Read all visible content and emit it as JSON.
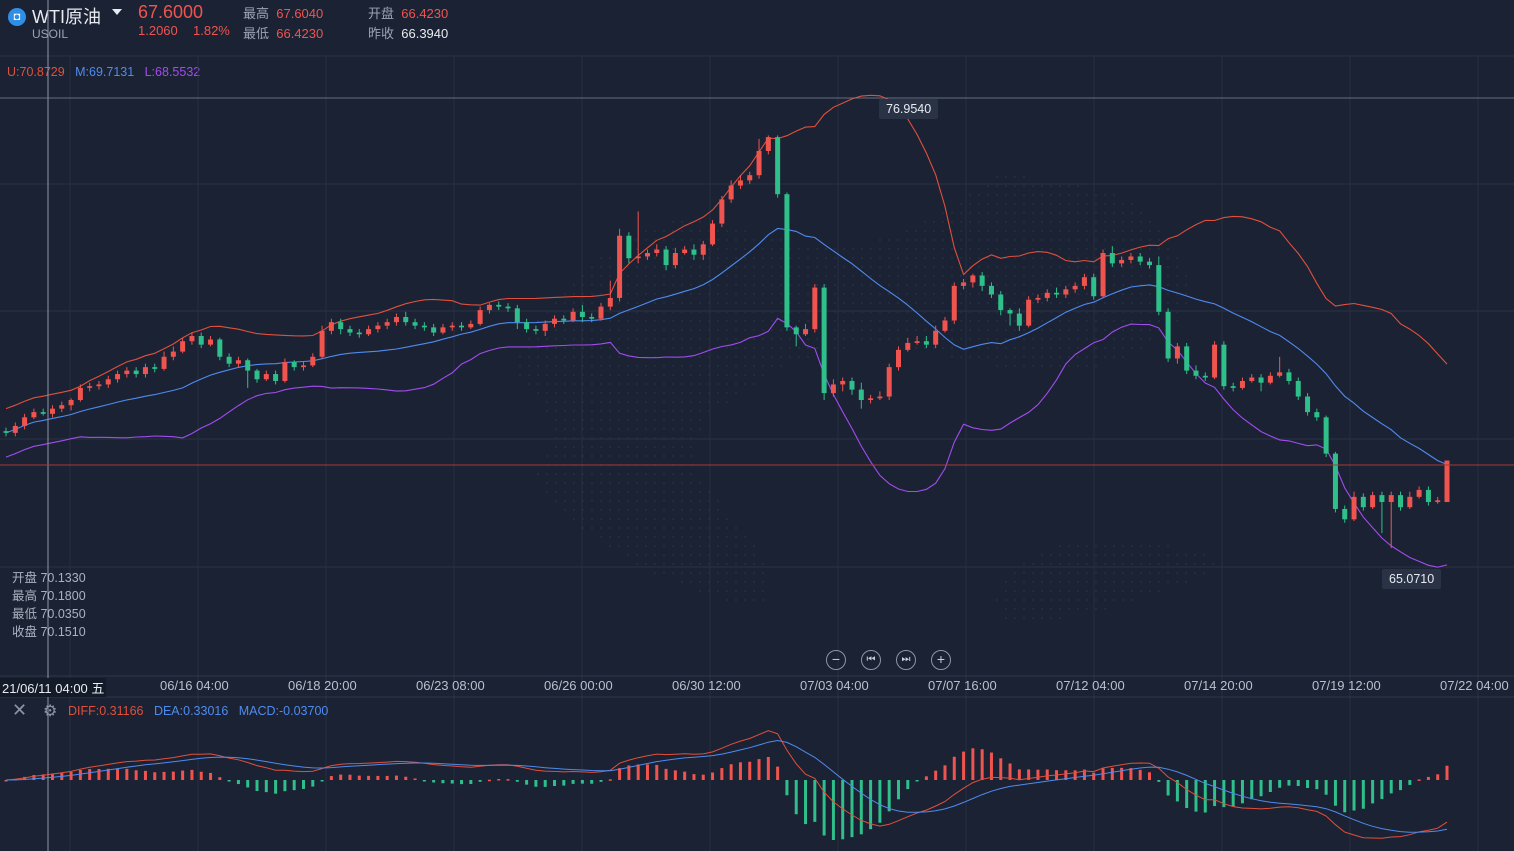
{
  "header": {
    "logo_glyph": "◘",
    "name": "WTI原油",
    "code": "USOIL",
    "price": "67.6000",
    "change": "1.2060",
    "change_pct": "1.82%",
    "high_label": "最高",
    "high": "67.6040",
    "open_label": "开盘",
    "open": "66.4230",
    "low_label": "最低",
    "low": "66.4230",
    "prev_close_label": "昨收",
    "prev_close": "66.3940"
  },
  "bollinger": {
    "upper": "U:70.8729",
    "middle": "M:69.7131",
    "lower": "L:68.5532",
    "colors": {
      "upper": "#e0503d",
      "middle": "#4f8bef",
      "lower": "#a24cf0"
    }
  },
  "crosshair_ohlc": {
    "open": "开盘 70.1330",
    "high": "最高 70.1800",
    "low": "最低 70.0350",
    "close": "收盘 70.1510"
  },
  "price_tags": {
    "max": "76.9540",
    "min": "65.0710"
  },
  "x_axis": {
    "first": "21/06/11 04:00 五",
    "labels": [
      "06/16 04:00",
      "06/18 20:00",
      "06/23 08:00",
      "06/26 00:00",
      "06/30 12:00",
      "07/03 04:00",
      "07/07 16:00",
      "07/12 04:00",
      "07/14 20:00",
      "07/19 12:00",
      "07/22 04:00"
    ]
  },
  "controls": {
    "zoom_out": "−",
    "prev": "⏮",
    "next": "⏭",
    "zoom_in": "+"
  },
  "macd": {
    "close_icon": "close-icon",
    "settings_icon": "gear-icon",
    "diff": "DIFF:0.31166",
    "dea": "DEA:0.33016",
    "macd": "MACD:-0.03700",
    "colors": {
      "diff": "#e0503d",
      "dea": "#4f8bef",
      "macd_pos": "#f0544f",
      "macd_neg": "#2fbf8a"
    }
  },
  "chart_data": {
    "type": "candlestick",
    "title": "WTI原油",
    "y_range": [
      64.5,
      79.0
    ],
    "grid": true,
    "candles": [
      [
        68.45,
        68.4,
        68.3,
        68.55
      ],
      [
        68.4,
        68.6,
        68.3,
        68.7
      ],
      [
        68.6,
        68.85,
        68.5,
        68.95
      ],
      [
        68.85,
        69.0,
        68.8,
        69.1
      ],
      [
        69.0,
        68.95,
        68.9,
        69.1
      ],
      [
        68.95,
        69.1,
        68.85,
        69.2
      ],
      [
        69.1,
        69.2,
        69.0,
        69.3
      ],
      [
        69.2,
        69.35,
        69.05,
        69.4
      ],
      [
        69.35,
        69.7,
        69.3,
        69.8
      ],
      [
        69.7,
        69.75,
        69.6,
        69.85
      ],
      [
        69.75,
        69.8,
        69.65,
        69.9
      ],
      [
        69.8,
        69.95,
        69.7,
        70.05
      ],
      [
        69.95,
        70.1,
        69.85,
        70.2
      ],
      [
        70.1,
        70.2,
        70.0,
        70.3
      ],
      [
        70.2,
        70.1,
        70.0,
        70.3
      ],
      [
        70.1,
        70.3,
        70.0,
        70.4
      ],
      [
        70.3,
        70.25,
        70.15,
        70.4
      ],
      [
        70.25,
        70.6,
        70.2,
        70.75
      ],
      [
        70.6,
        70.75,
        70.5,
        70.9
      ],
      [
        70.75,
        71.05,
        70.7,
        71.15
      ],
      [
        71.05,
        71.2,
        70.95,
        71.3
      ],
      [
        71.2,
        70.95,
        70.85,
        71.3
      ],
      [
        70.95,
        71.1,
        70.9,
        71.2
      ],
      [
        71.1,
        70.6,
        70.5,
        71.15
      ],
      [
        70.6,
        70.4,
        70.3,
        70.7
      ],
      [
        70.4,
        70.5,
        70.3,
        70.6
      ],
      [
        70.5,
        70.2,
        69.7,
        70.55
      ],
      [
        70.2,
        69.95,
        69.85,
        70.25
      ],
      [
        69.95,
        70.1,
        69.9,
        70.2
      ],
      [
        70.1,
        69.9,
        69.8,
        70.2
      ],
      [
        69.9,
        70.45,
        69.85,
        70.55
      ],
      [
        70.45,
        70.3,
        70.2,
        70.5
      ],
      [
        70.3,
        70.35,
        70.2,
        70.45
      ],
      [
        70.35,
        70.6,
        70.3,
        70.7
      ],
      [
        70.6,
        71.35,
        70.55,
        71.5
      ],
      [
        71.35,
        71.6,
        71.25,
        71.7
      ],
      [
        71.6,
        71.4,
        71.25,
        71.7
      ],
      [
        71.4,
        71.3,
        71.2,
        71.5
      ],
      [
        71.3,
        71.25,
        71.15,
        71.4
      ],
      [
        71.25,
        71.4,
        71.2,
        71.5
      ],
      [
        71.4,
        71.5,
        71.3,
        71.6
      ],
      [
        71.5,
        71.6,
        71.4,
        71.7
      ],
      [
        71.6,
        71.75,
        71.5,
        71.85
      ],
      [
        71.75,
        71.6,
        71.5,
        71.9
      ],
      [
        71.6,
        71.5,
        71.4,
        71.7
      ],
      [
        71.5,
        71.45,
        71.35,
        71.6
      ],
      [
        71.45,
        71.3,
        71.2,
        71.55
      ],
      [
        71.3,
        71.45,
        71.25,
        71.55
      ],
      [
        71.45,
        71.5,
        71.35,
        71.6
      ],
      [
        71.5,
        71.45,
        71.35,
        71.6
      ],
      [
        71.45,
        71.55,
        71.4,
        71.65
      ],
      [
        71.55,
        71.95,
        71.5,
        72.05
      ],
      [
        71.95,
        72.1,
        71.85,
        72.15
      ],
      [
        72.1,
        72.05,
        71.95,
        72.2
      ],
      [
        72.05,
        72.0,
        71.9,
        72.15
      ],
      [
        72.0,
        71.6,
        71.4,
        72.1
      ],
      [
        71.6,
        71.4,
        71.3,
        71.7
      ],
      [
        71.4,
        71.35,
        71.25,
        71.5
      ],
      [
        71.35,
        71.55,
        71.2,
        71.65
      ],
      [
        71.55,
        71.7,
        71.45,
        71.8
      ],
      [
        71.7,
        71.65,
        71.55,
        71.8
      ],
      [
        71.65,
        71.9,
        71.6,
        72.0
      ],
      [
        71.9,
        71.75,
        71.6,
        72.1
      ],
      [
        71.75,
        71.7,
        71.6,
        71.85
      ],
      [
        71.7,
        72.05,
        71.65,
        72.15
      ],
      [
        72.05,
        72.3,
        71.95,
        72.8
      ],
      [
        72.3,
        74.1,
        72.2,
        74.3
      ],
      [
        74.1,
        73.45,
        73.3,
        74.2
      ],
      [
        73.45,
        73.5,
        73.3,
        74.8
      ],
      [
        73.5,
        73.6,
        73.4,
        73.7
      ],
      [
        73.6,
        73.7,
        73.5,
        73.85
      ],
      [
        73.7,
        73.25,
        73.1,
        73.8
      ],
      [
        73.25,
        73.6,
        73.15,
        73.75
      ],
      [
        73.6,
        73.7,
        73.55,
        73.8
      ],
      [
        73.7,
        73.55,
        73.4,
        73.85
      ],
      [
        73.55,
        73.85,
        73.4,
        73.95
      ],
      [
        73.85,
        74.45,
        73.8,
        74.55
      ],
      [
        74.45,
        75.15,
        74.35,
        75.25
      ],
      [
        75.15,
        75.55,
        75.05,
        75.7
      ],
      [
        75.55,
        75.7,
        75.45,
        75.85
      ],
      [
        75.7,
        75.85,
        75.6,
        75.95
      ],
      [
        75.85,
        76.55,
        75.75,
        76.9
      ],
      [
        76.55,
        76.95,
        76.45,
        77.0
      ],
      [
        76.95,
        75.3,
        75.2,
        77.0
      ],
      [
        75.3,
        71.45,
        71.35,
        75.35
      ],
      [
        71.45,
        71.25,
        70.9,
        71.5
      ],
      [
        71.25,
        71.4,
        71.2,
        71.55
      ],
      [
        71.4,
        72.6,
        71.3,
        72.7
      ],
      [
        72.6,
        69.55,
        69.35,
        72.7
      ],
      [
        69.55,
        69.8,
        69.45,
        69.95
      ],
      [
        69.8,
        69.9,
        69.6,
        70.0
      ],
      [
        69.9,
        69.65,
        69.5,
        70.0
      ],
      [
        69.65,
        69.35,
        69.1,
        69.85
      ],
      [
        69.35,
        69.4,
        69.25,
        69.5
      ],
      [
        69.4,
        69.45,
        69.35,
        69.6
      ],
      [
        69.45,
        70.3,
        69.35,
        70.4
      ],
      [
        70.3,
        70.8,
        70.2,
        70.9
      ],
      [
        70.8,
        71.0,
        70.75,
        71.15
      ],
      [
        71.0,
        71.05,
        70.95,
        71.2
      ],
      [
        71.05,
        70.95,
        70.85,
        71.2
      ],
      [
        70.95,
        71.35,
        70.85,
        71.5
      ],
      [
        71.35,
        71.65,
        71.3,
        71.75
      ],
      [
        71.65,
        72.65,
        71.55,
        72.75
      ],
      [
        72.65,
        72.75,
        72.55,
        72.85
      ],
      [
        72.75,
        72.95,
        72.6,
        73.0
      ],
      [
        72.95,
        72.65,
        72.5,
        73.05
      ],
      [
        72.65,
        72.4,
        72.3,
        72.75
      ],
      [
        72.4,
        71.95,
        71.8,
        72.5
      ],
      [
        71.95,
        71.85,
        71.5,
        72.0
      ],
      [
        71.85,
        71.5,
        71.35,
        72.0
      ],
      [
        71.5,
        72.25,
        71.45,
        72.35
      ],
      [
        72.25,
        72.3,
        72.15,
        72.4
      ],
      [
        72.3,
        72.45,
        72.2,
        72.55
      ],
      [
        72.45,
        72.4,
        72.3,
        72.6
      ],
      [
        72.4,
        72.55,
        72.3,
        72.65
      ],
      [
        72.55,
        72.65,
        72.45,
        72.75
      ],
      [
        72.65,
        72.9,
        72.55,
        73.0
      ],
      [
        72.9,
        72.35,
        72.25,
        73.0
      ],
      [
        72.35,
        73.6,
        72.3,
        73.7
      ],
      [
        73.6,
        73.3,
        73.2,
        73.8
      ],
      [
        73.3,
        73.4,
        73.2,
        73.5
      ],
      [
        73.4,
        73.5,
        73.3,
        73.6
      ],
      [
        73.5,
        73.35,
        73.25,
        73.6
      ],
      [
        73.35,
        73.25,
        73.15,
        73.45
      ],
      [
        73.25,
        71.9,
        71.8,
        73.5
      ],
      [
        71.9,
        70.55,
        70.45,
        72.0
      ],
      [
        70.55,
        70.9,
        70.4,
        71.0
      ],
      [
        70.9,
        70.2,
        70.1,
        71.0
      ],
      [
        70.2,
        70.05,
        69.95,
        70.35
      ],
      [
        70.05,
        70.0,
        69.9,
        70.15
      ],
      [
        70.0,
        70.95,
        69.95,
        71.05
      ],
      [
        70.95,
        69.75,
        69.65,
        71.05
      ],
      [
        69.75,
        69.7,
        69.6,
        69.85
      ],
      [
        69.7,
        69.9,
        69.65,
        70.0
      ],
      [
        69.9,
        70.0,
        69.85,
        70.1
      ],
      [
        70.0,
        69.85,
        69.6,
        70.1
      ],
      [
        69.85,
        70.05,
        69.8,
        70.15
      ],
      [
        70.05,
        70.15,
        70.0,
        70.6
      ],
      [
        70.15,
        69.9,
        69.8,
        70.25
      ],
      [
        69.9,
        69.45,
        69.35,
        70.0
      ],
      [
        69.45,
        69.0,
        68.9,
        69.55
      ],
      [
        69.0,
        68.85,
        68.75,
        69.1
      ],
      [
        68.85,
        67.8,
        67.7,
        68.9
      ],
      [
        67.8,
        66.2,
        66.1,
        67.85
      ],
      [
        66.2,
        65.9,
        65.8,
        66.3
      ],
      [
        65.9,
        66.55,
        65.85,
        66.7
      ],
      [
        66.55,
        66.25,
        66.15,
        66.65
      ],
      [
        66.25,
        66.6,
        66.2,
        66.7
      ],
      [
        66.6,
        66.4,
        65.5,
        66.7
      ],
      [
        66.4,
        66.6,
        65.07,
        66.7
      ],
      [
        66.6,
        66.25,
        66.15,
        66.7
      ],
      [
        66.25,
        66.55,
        66.2,
        66.7
      ],
      [
        66.55,
        66.75,
        66.5,
        66.85
      ],
      [
        66.75,
        66.4,
        66.3,
        66.85
      ],
      [
        66.4,
        66.45,
        66.35,
        66.55
      ],
      [
        66.4,
        67.6,
        66.4,
        67.6
      ]
    ]
  }
}
